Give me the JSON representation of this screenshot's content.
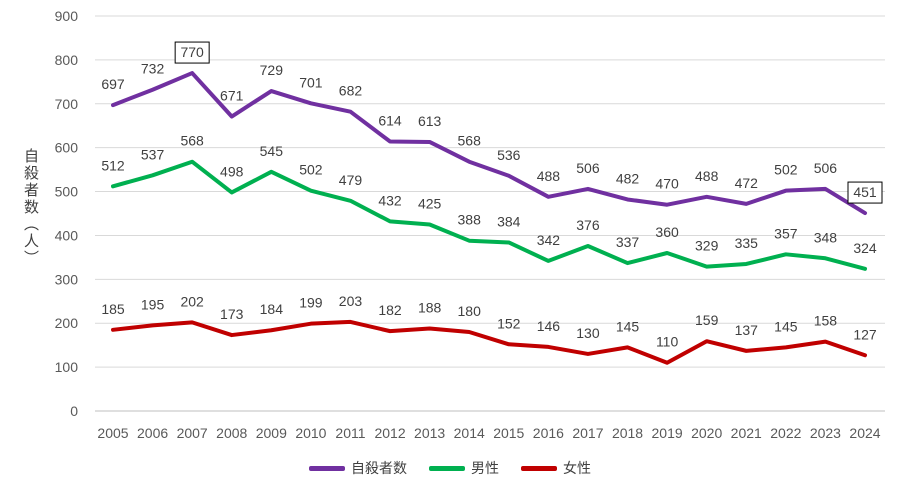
{
  "chart_data": {
    "type": "line",
    "title": "",
    "xlabel": "",
    "ylabel": "自殺者数（人）",
    "ylim": [
      0,
      900
    ],
    "yticks": [
      0,
      100,
      200,
      300,
      400,
      500,
      600,
      700,
      800,
      900
    ],
    "grid": true,
    "legend_position": "bottom",
    "categories": [
      "2005",
      "2006",
      "2007",
      "2008",
      "2009",
      "2010",
      "2011",
      "2012",
      "2013",
      "2014",
      "2015",
      "2016",
      "2017",
      "2018",
      "2019",
      "2020",
      "2021",
      "2022",
      "2023",
      "2024"
    ],
    "series": [
      {
        "name": "自殺者数",
        "color": "#7030A0",
        "values": [
          697,
          732,
          770,
          671,
          729,
          701,
          682,
          614,
          613,
          568,
          536,
          488,
          506,
          482,
          470,
          488,
          472,
          502,
          506,
          451
        ],
        "boxed_indices": [
          2,
          19
        ]
      },
      {
        "name": "男性",
        "color": "#00B050",
        "values": [
          512,
          537,
          568,
          498,
          545,
          502,
          479,
          432,
          425,
          388,
          384,
          342,
          376,
          337,
          360,
          329,
          335,
          357,
          348,
          324
        ]
      },
      {
        "name": "女性",
        "color": "#C00000",
        "values": [
          185,
          195,
          202,
          173,
          184,
          199,
          203,
          182,
          188,
          180,
          152,
          146,
          130,
          145,
          110,
          159,
          137,
          145,
          158,
          127
        ]
      }
    ]
  }
}
